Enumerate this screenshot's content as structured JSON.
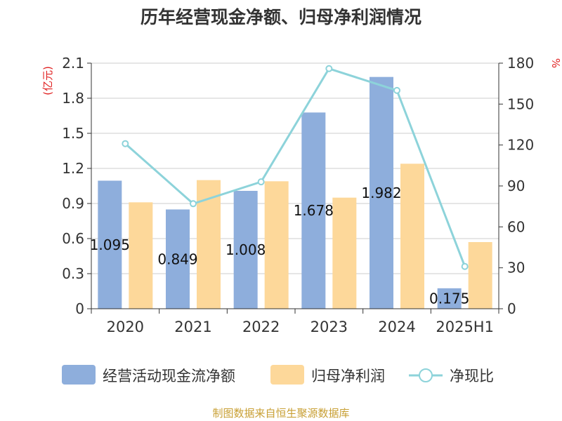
{
  "chart_data": {
    "type": "bar",
    "title": "历年经营现金净额、归母净利润情况",
    "categories": [
      "2020",
      "2021",
      "2022",
      "2023",
      "2024",
      "2025H1"
    ],
    "series": [
      {
        "name": "经营活动现金流净额",
        "type": "bar",
        "axis": "left",
        "color": "#8eaedc",
        "values": [
          1.095,
          0.849,
          1.008,
          1.678,
          1.982,
          0.175
        ],
        "labels": [
          "1.095",
          "0.849",
          "1.008",
          "1.678",
          "1.982",
          "0.175"
        ]
      },
      {
        "name": "归母净利润",
        "type": "bar",
        "axis": "left",
        "color": "#fdd89a",
        "values": [
          0.91,
          1.1,
          1.09,
          0.95,
          1.24,
          0.57
        ]
      },
      {
        "name": "净现比",
        "type": "line",
        "axis": "right",
        "color": "#8dd3da",
        "values": [
          121,
          77,
          93,
          176,
          160,
          31
        ]
      }
    ],
    "left_axis": {
      "unit": "(亿元)",
      "min": 0,
      "max": 2.1,
      "ticks": [
        "0",
        "0.3",
        "0.6",
        "0.9",
        "1.2",
        "1.5",
        "1.8",
        "2.1"
      ]
    },
    "right_axis": {
      "unit": "%",
      "min": 0,
      "max": 180,
      "ticks": [
        "0",
        "30",
        "60",
        "90",
        "120",
        "150",
        "180"
      ]
    },
    "grid": true,
    "legend_position": "bottom"
  },
  "source_text": "制图数据来自恒生聚源数据库"
}
